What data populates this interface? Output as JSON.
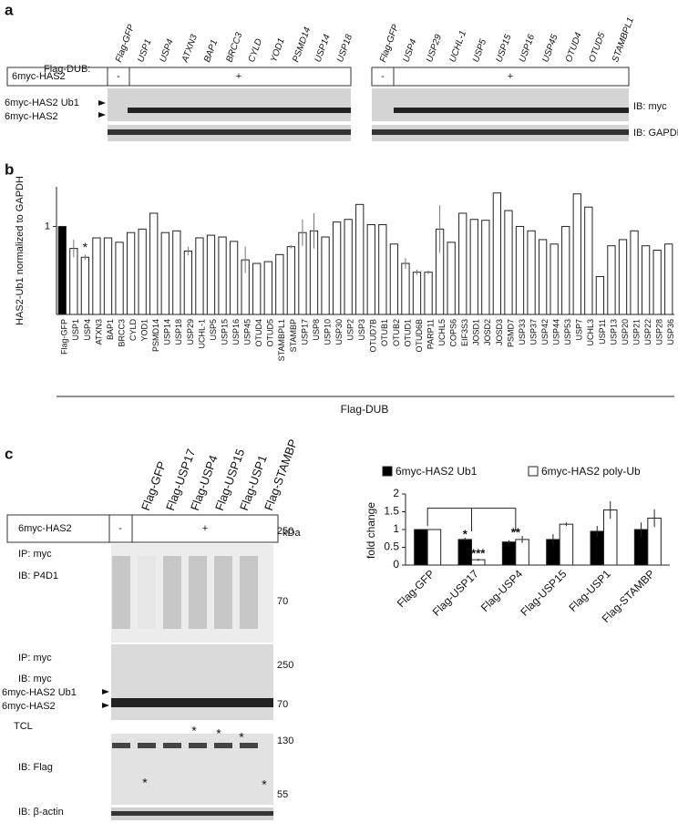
{
  "panels": {
    "a": {
      "label": "a",
      "flag_dub": "Flag-DUB:",
      "construct": "6myc-HAS2",
      "minus": "-",
      "plus": "+",
      "left_lanes": [
        "Flag-GFP",
        "USP1",
        "USP4",
        "ATXN3",
        "BAP1",
        "BRCC3",
        "CYLD",
        "YOD1",
        "PSMD14",
        "USP14",
        "USP18"
      ],
      "right_lanes": [
        "Flag-GFP",
        "USP4",
        "USP29",
        "UCHL-1",
        "USP5",
        "USP15",
        "USP16",
        "USP45",
        "OTUD4",
        "OTUD5",
        "STAMBPL1"
      ],
      "band_ub": "6myc-HAS2 Ub1",
      "band_has2": "6myc-HAS2",
      "ib_myc": "IB: myc",
      "ib_gapdh": "IB: GAPDH"
    },
    "b": {
      "label": "b"
    },
    "c": {
      "label": "c",
      "lanes": [
        "Flag-GFP",
        "Flag-USP17",
        "Flag-USP4",
        "Flag-USP15",
        "Flag-USP1",
        "Flag-STAMBP"
      ],
      "construct": "6myc-HAS2",
      "minus": "-",
      "plus": "+",
      "kda": "kDa",
      "markers": [
        "250",
        "70",
        "250",
        "70",
        "130",
        "55"
      ],
      "ip1": "IP: myc",
      "ib1": "IB: P4D1",
      "ip2": "IP: myc",
      "ib2": "IB: myc",
      "band_ub": "6myc-HAS2 Ub1",
      "band_has2": "6myc-HAS2",
      "tcl": "TCL",
      "ib_flag": "IB: Flag",
      "ib_actin": "IB: β-actin",
      "flag_asterisks": [
        "*",
        "*",
        "*",
        "*",
        "*"
      ]
    }
  },
  "chart_data": [
    {
      "type": "bar",
      "ylabel": "HAS2-Ub1 normalized to GAPDH",
      "xlabel": "Flag-DUB",
      "categories": [
        "Flag-GFP",
        "USP1",
        "USP4",
        "ATXN3",
        "BAP1",
        "BRCC3",
        "CYLD",
        "YOD1",
        "PSMD14",
        "USP14",
        "USP18",
        "USP29",
        "UCHL-1",
        "USP5",
        "USP15",
        "USP16",
        "USP45",
        "OTUD4",
        "OTUD5",
        "STAMBPL1",
        "STAMBP",
        "USP17",
        "USP8",
        "USP10",
        "USP30",
        "USP2",
        "USP3",
        "OTUD7B",
        "OTUB1",
        "OTUB2",
        "OTUD1",
        "OTUD6B",
        "PARP11",
        "UCHL5",
        "COPS6",
        "EIF3S3",
        "JOSD1",
        "JOSD2",
        "JOSD3",
        "PSMD7",
        "USP33",
        "USP37",
        "USP42",
        "USP44",
        "USP53",
        "USP7",
        "UCHL3",
        "USP11",
        "USP13",
        "USP20",
        "USP21",
        "USP22",
        "USP28",
        "USP36"
      ],
      "values": [
        1,
        0.75,
        0.65,
        0.87,
        0.87,
        0.82,
        0.93,
        0.97,
        1.15,
        0.93,
        0.95,
        0.72,
        0.87,
        0.9,
        0.88,
        0.83,
        0.62,
        0.58,
        0.6,
        0.68,
        0.77,
        0.93,
        0.95,
        0.88,
        1.05,
        1.08,
        1.25,
        1.02,
        1.02,
        0.8,
        0.58,
        0.48,
        0.48,
        0.97,
        0.82,
        1.15,
        1.08,
        1.07,
        1.38,
        1.18,
        1.0,
        0.95,
        0.85,
        0.8,
        1.0,
        1.37,
        1.22,
        0.43,
        0.78,
        0.85,
        0.95,
        0.78,
        0.73,
        0.8
      ],
      "errors": [
        null,
        0.1,
        0.03,
        null,
        null,
        null,
        null,
        null,
        null,
        null,
        null,
        0.05,
        null,
        null,
        null,
        null,
        0.15,
        null,
        null,
        null,
        0.02,
        0.15,
        0.2,
        null,
        null,
        null,
        null,
        null,
        null,
        null,
        0.06,
        0.03,
        0.02,
        0.27,
        null,
        null,
        null,
        null,
        null,
        null,
        null,
        null,
        null,
        null,
        null,
        null,
        null,
        null,
        null,
        null,
        null,
        null,
        null,
        null
      ],
      "colors": [
        "#000000",
        "#ffffff",
        "#ffffff",
        "#ffffff",
        "#ffffff",
        "#ffffff",
        "#ffffff",
        "#ffffff",
        "#ffffff",
        "#ffffff",
        "#ffffff",
        "#ffffff",
        "#ffffff",
        "#ffffff",
        "#ffffff",
        "#ffffff",
        "#ffffff",
        "#ffffff",
        "#ffffff",
        "#ffffff",
        "#ffffff",
        "#ffffff",
        "#ffffff",
        "#ffffff",
        "#ffffff",
        "#ffffff",
        "#ffffff",
        "#ffffff",
        "#ffffff",
        "#ffffff",
        "#ffffff",
        "#ffffff",
        "#ffffff",
        "#ffffff",
        "#ffffff",
        "#ffffff",
        "#ffffff",
        "#ffffff",
        "#ffffff",
        "#ffffff",
        "#ffffff",
        "#ffffff",
        "#ffffff",
        "#ffffff",
        "#ffffff",
        "#ffffff",
        "#ffffff",
        "#ffffff",
        "#ffffff",
        "#ffffff",
        "#ffffff",
        "#ffffff",
        "#ffffff",
        "#ffffff"
      ],
      "annotation": "*",
      "ylim": [
        0,
        1.45
      ],
      "yticks": [
        1
      ]
    },
    {
      "type": "grouped_bar",
      "ylabel": "fold change",
      "categories": [
        "Flag-GFP",
        "Flag-USP17",
        "Flag-USP4",
        "Flag-USP15",
        "Flag-USP1",
        "Flag-STAMBP"
      ],
      "series": [
        {
          "name": "6myc-HAS2 Ub1",
          "color": "#000000",
          "values": [
            1,
            0.72,
            0.65,
            0.72,
            0.95,
            1.0
          ],
          "errors": [
            null,
            0.05,
            0.05,
            0.15,
            0.15,
            0.2
          ]
        },
        {
          "name": "6myc-HAS2 poly-Ub",
          "color": "#ffffff",
          "values": [
            1,
            0.15,
            0.72,
            1.15,
            1.55,
            1.32
          ],
          "errors": [
            null,
            0.03,
            0.1,
            0.05,
            0.25,
            0.25
          ]
        }
      ],
      "annotations": [
        "*",
        "***",
        "**"
      ],
      "ylim": [
        0,
        2
      ],
      "yticks": [
        0,
        0.5,
        1,
        1.5,
        2
      ],
      "legend": "top"
    }
  ]
}
